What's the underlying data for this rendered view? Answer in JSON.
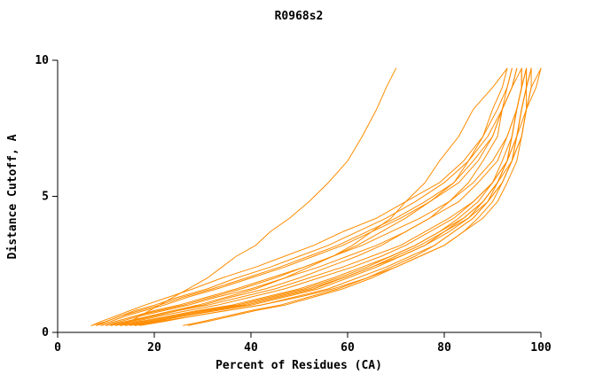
{
  "chart_data": {
    "type": "line",
    "title": "R0968s2",
    "xlabel": "Percent of Residues (CA)",
    "ylabel": "Distance Cutoff, A",
    "xlim": [
      0,
      100
    ],
    "ylim": [
      0,
      10
    ],
    "xticks": [
      0,
      20,
      40,
      60,
      80,
      100
    ],
    "yticks": [
      0,
      5,
      10
    ],
    "grid": false,
    "legend": false,
    "line_color": "#ff8c00",
    "axis_color": "#000000",
    "y_levels": [
      0.25,
      0.4,
      0.6,
      0.8,
      1.0,
      1.3,
      1.6,
      2.0,
      2.4,
      2.8,
      3.2,
      3.7,
      4.2,
      4.8,
      5.5,
      6.3,
      7.2,
      8.2,
      9.0,
      9.7
    ],
    "series": [
      {
        "x": [
          7,
          9,
          12,
          15,
          18,
          23,
          28,
          34,
          41,
          47,
          53,
          59,
          66,
          72,
          79,
          84,
          88,
          91,
          93,
          94
        ]
      },
      {
        "x": [
          8,
          11,
          14,
          18,
          22,
          27,
          33,
          40,
          47,
          53,
          59,
          65,
          71,
          77,
          83,
          87,
          90,
          92,
          94,
          95
        ]
      },
      {
        "x": [
          9,
          12,
          16,
          20,
          25,
          31,
          37,
          44,
          51,
          57,
          63,
          69,
          75,
          81,
          86,
          90,
          93,
          95,
          96,
          97
        ]
      },
      {
        "x": [
          10,
          13,
          17,
          22,
          27,
          33,
          40,
          47,
          54,
          60,
          66,
          72,
          77,
          83,
          87,
          91,
          93,
          95,
          96,
          97
        ]
      },
      {
        "x": [
          11,
          15,
          20,
          25,
          31,
          38,
          45,
          52,
          59,
          65,
          71,
          76,
          81,
          86,
          90,
          93,
          95,
          97,
          99,
          100
        ]
      },
      {
        "x": [
          12,
          16,
          21,
          27,
          33,
          40,
          47,
          54,
          61,
          67,
          72,
          77,
          82,
          86,
          90,
          93,
          95,
          96,
          97,
          98
        ]
      },
      {
        "x": [
          13,
          17,
          23,
          29,
          36,
          43,
          50,
          57,
          63,
          69,
          74,
          79,
          84,
          88,
          91,
          93,
          95,
          96,
          97,
          98
        ]
      },
      {
        "x": [
          14,
          19,
          25,
          31,
          38,
          45,
          52,
          59,
          65,
          70,
          75,
          80,
          85,
          88,
          91,
          94,
          95,
          96,
          97,
          97
        ]
      },
      {
        "x": [
          15,
          20,
          26,
          33,
          40,
          47,
          54,
          60,
          66,
          71,
          76,
          81,
          85,
          89,
          92,
          94,
          96,
          97,
          98,
          98
        ]
      },
      {
        "x": [
          17,
          22,
          28,
          35,
          42,
          49,
          56,
          62,
          68,
          73,
          78,
          82,
          86,
          89,
          92,
          94,
          96,
          97,
          97,
          98
        ]
      },
      {
        "x": [
          27,
          31,
          36,
          41,
          47,
          53,
          59,
          65,
          70,
          75,
          80,
          84,
          87,
          90,
          92,
          94,
          95,
          96,
          97,
          97
        ]
      },
      {
        "x": [
          26,
          30,
          35,
          40,
          46,
          52,
          58,
          64,
          69,
          74,
          78,
          82,
          86,
          89,
          91,
          93,
          94,
          95,
          96,
          96
        ]
      },
      {
        "x": [
          9,
          12,
          16,
          21,
          26,
          32,
          38,
          45,
          51,
          57,
          62,
          67,
          72,
          77,
          82,
          85,
          88,
          90,
          92,
          93
        ]
      },
      {
        "x": [
          10,
          14,
          19,
          24,
          30,
          36,
          43,
          50,
          56,
          62,
          67,
          72,
          77,
          81,
          85,
          88,
          91,
          92,
          93,
          94
        ]
      },
      {
        "x": [
          16,
          21,
          28,
          35,
          42,
          50,
          57,
          64,
          70,
          75,
          80,
          84,
          88,
          91,
          93,
          95,
          96,
          97,
          98,
          100
        ]
      },
      {
        "x": [
          11,
          15,
          19,
          24,
          29,
          35,
          41,
          47,
          52,
          57,
          61,
          65,
          69,
          72,
          76,
          79,
          83,
          86,
          90,
          93
        ]
      },
      {
        "x": [
          13,
          15,
          17,
          19,
          21,
          24,
          27,
          31,
          34,
          37,
          41,
          44,
          48,
          52,
          56,
          60,
          63,
          66,
          68,
          70
        ]
      },
      {
        "x": [
          8,
          10,
          13,
          17,
          21,
          26,
          32,
          39,
          46,
          52,
          58,
          64,
          70,
          76,
          82,
          86,
          90,
          92,
          94,
          95
        ]
      },
      {
        "x": [
          13,
          18,
          24,
          30,
          37,
          44,
          51,
          58,
          64,
          69,
          74,
          79,
          83,
          87,
          90,
          92,
          94,
          95,
          96,
          97
        ]
      },
      {
        "x": [
          16,
          20,
          26,
          32,
          39,
          46,
          53,
          59,
          65,
          71,
          76,
          80,
          84,
          88,
          91,
          93,
          94,
          95,
          96,
          96
        ]
      },
      {
        "x": [
          7,
          10,
          13,
          16,
          20,
          25,
          31,
          37,
          44,
          50,
          56,
          62,
          68,
          74,
          80,
          85,
          89,
          92,
          94,
          96
        ]
      }
    ]
  }
}
